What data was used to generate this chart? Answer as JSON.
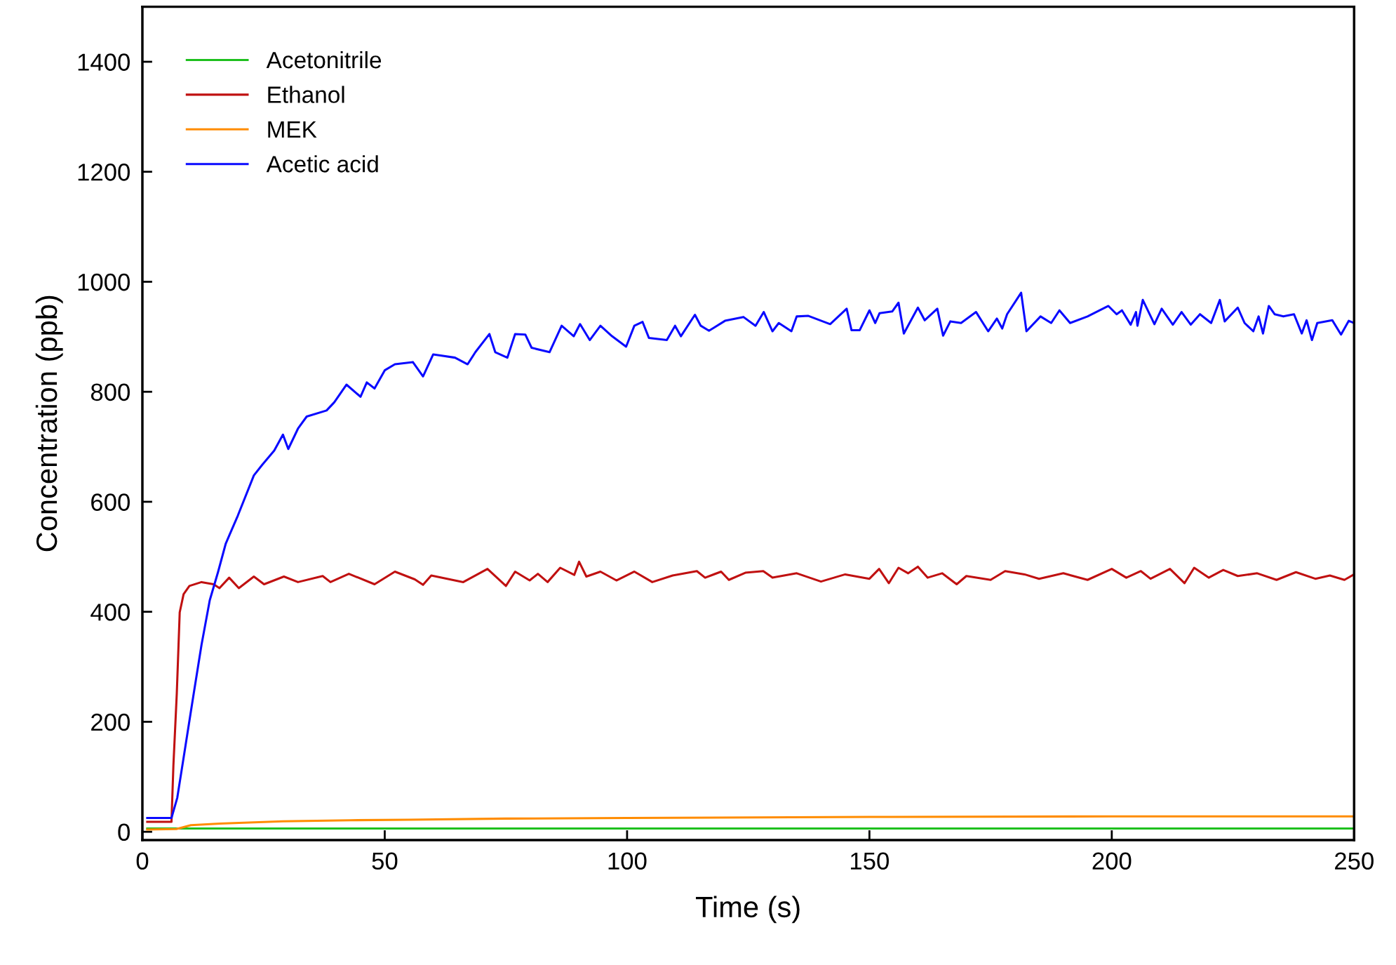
{
  "chart_data": {
    "type": "line",
    "xlabel": "Time (s)",
    "ylabel": "Concentration (ppb)",
    "xlim": [
      0,
      250
    ],
    "xticks": [
      0,
      50,
      100,
      150,
      200,
      250
    ],
    "ylim": [
      -15,
      1500
    ],
    "yticks": [
      0,
      200,
      400,
      600,
      800,
      1000,
      1200,
      1400
    ],
    "grid": false,
    "legend": "top left",
    "marker": "none",
    "line_style": "solid",
    "series": [
      {
        "name": "Acetonitrile",
        "color": "#1ec01e",
        "x": [
          1,
          250
        ],
        "values": [
          6,
          6
        ]
      },
      {
        "name": "Ethanol",
        "color": "#c01010",
        "x": [
          1,
          6.0,
          6.4,
          7.1,
          7.7,
          8.5,
          9.7,
          12.2,
          14.7,
          15.9,
          17.9,
          19.9,
          23.0,
          25.1,
          29.2,
          32.1,
          37.2,
          38.8,
          42.6,
          47.9,
          52.1,
          56.2,
          57.9,
          59.6,
          66.2,
          71.2,
          75.0,
          76.9,
          79.9,
          81.6,
          83.6,
          86.2,
          89.1,
          90.1,
          91.6,
          94.5,
          97.8,
          101.5,
          105.2,
          109.4,
          114.4,
          116.1,
          119.4,
          121.0,
          124.4,
          128.1,
          130,
          135,
          140,
          145,
          150,
          152,
          154,
          156,
          158,
          160,
          162,
          165,
          168,
          170,
          175,
          178,
          182,
          185,
          190,
          195,
          200,
          203,
          206,
          208,
          212,
          215,
          217,
          220,
          223,
          226,
          230,
          234,
          238,
          242,
          245,
          248,
          250
        ],
        "values": [
          18,
          18,
          121,
          252,
          399,
          432,
          447,
          454,
          450,
          443,
          462,
          443,
          464,
          450,
          464,
          454,
          465,
          454,
          469,
          450,
          473,
          459,
          449,
          466,
          454,
          478,
          447,
          473,
          457,
          469,
          454,
          480,
          467,
          491,
          464,
          473,
          457,
          473,
          454,
          466,
          474,
          462,
          473,
          458,
          471,
          474,
          462,
          470,
          455,
          468,
          460,
          478,
          452,
          480,
          470,
          482,
          462,
          470,
          450,
          465,
          458,
          474,
          468,
          460,
          470,
          458,
          478,
          462,
          474,
          460,
          478,
          452,
          480,
          462,
          476,
          465,
          470,
          458,
          472,
          460,
          466,
          458,
          468
        ]
      },
      {
        "name": "MEK",
        "color": "#ff8c00",
        "x": [
          1,
          7,
          10,
          16,
          29,
          43,
          55,
          75,
          100,
          150,
          200,
          250
        ],
        "values": [
          4,
          5,
          12,
          15,
          19,
          21,
          22,
          24,
          25,
          27,
          28,
          28
        ]
      },
      {
        "name": "Acetic acid",
        "color": "#0a0aff",
        "x": [
          1,
          6.0,
          7.2,
          8.9,
          10.6,
          12.2,
          13.9,
          15.6,
          17.2,
          19.7,
          23.0,
          24.7,
          27.2,
          29.0,
          30.1,
          32.1,
          33.9,
          38.0,
          39.6,
          42.1,
          45.0,
          46.3,
          47.9,
          50.0,
          52.1,
          55.8,
          57.9,
          60.0,
          64.5,
          67.1,
          68.7,
          71.6,
          72.8,
          75.3,
          76.9,
          79.0,
          80.3,
          84.0,
          86.5,
          89.0,
          90.3,
          92.3,
          94.5,
          96.9,
          99.8,
          101.5,
          103.2,
          104.5,
          108.2,
          109.9,
          111.1,
          114.0,
          115.2,
          116.9,
          120.2,
          124.0,
          126.5,
          128.2,
          130.0,
          131.3,
          133.9,
          135.0,
          137.4,
          141.9,
          145.3,
          146.3,
          148.0,
          150.0,
          151.2,
          152.1,
          154.7,
          156.0,
          157.1,
          160.0,
          161.4,
          164.0,
          165.2,
          166.7,
          168.9,
          172.0,
          174.5,
          176.3,
          177.4,
          178.4,
          181.3,
          182.4,
          185.3,
          187.5,
          189.2,
          191.4,
          195.0,
          199.3,
          201.0,
          202.1,
          203.9,
          205.0,
          205.3,
          206.4,
          208.8,
          210.3,
          212.6,
          214.4,
          216.3,
          218.2,
          220.5,
          222.3,
          223.3,
          226.0,
          227.4,
          229.2,
          230.3,
          231.2,
          232.4,
          233.6,
          235.4,
          237.6,
          239.2,
          240.2,
          241.3,
          242.4,
          245.5,
          247.3,
          248.9,
          250
        ],
        "values": [
          25,
          25,
          62,
          157,
          252,
          340,
          421,
          472,
          524,
          575,
          648,
          667,
          693,
          722,
          696,
          733,
          755,
          766,
          781,
          813,
          791,
          817,
          806,
          839,
          850,
          854,
          828,
          868,
          862,
          850,
          872,
          905,
          872,
          862,
          905,
          904,
          880,
          872,
          920,
          901,
          923,
          894,
          920,
          901,
          882,
          920,
          927,
          898,
          894,
          920,
          901,
          940,
          920,
          911,
          929,
          936,
          920,
          945,
          910,
          925,
          910,
          937,
          938,
          923,
          951,
          912,
          912,
          948,
          925,
          943,
          946,
          962,
          906,
          953,
          930,
          951,
          902,
          928,
          925,
          945,
          910,
          933,
          915,
          941,
          980,
          910,
          937,
          925,
          948,
          925,
          937,
          956,
          941,
          948,
          922,
          945,
          920,
          967,
          923,
          951,
          922,
          945,
          922,
          941,
          925,
          967,
          928,
          953,
          925,
          910,
          937,
          906,
          956,
          941,
          937,
          941,
          906,
          930,
          894,
          925,
          930,
          904,
          929,
          925
        ]
      }
    ]
  }
}
